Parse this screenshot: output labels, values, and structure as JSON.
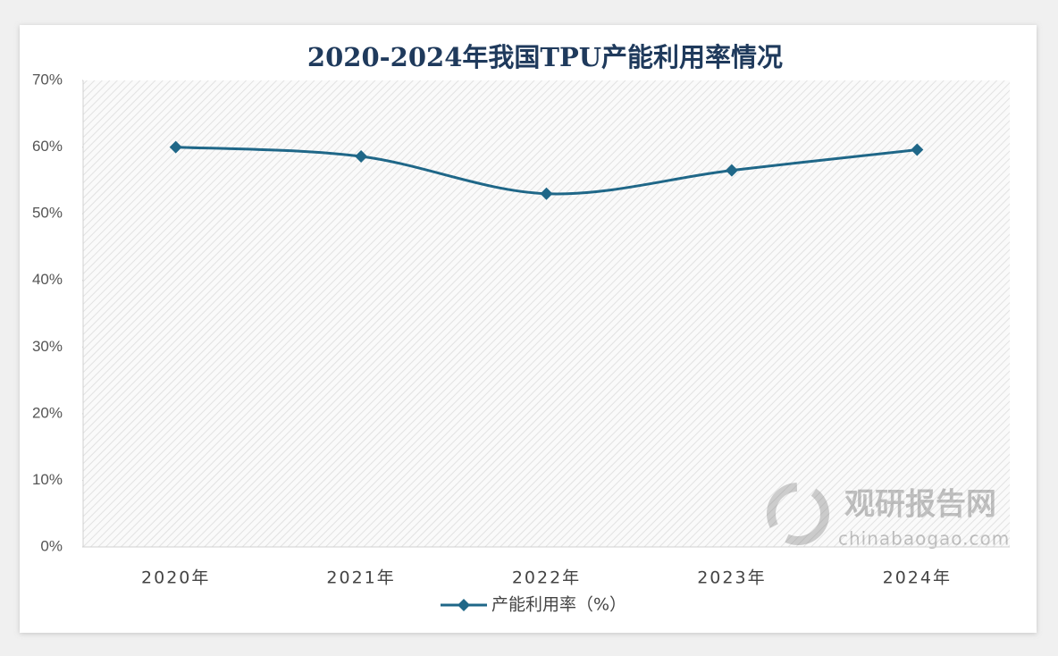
{
  "chart_data": {
    "type": "line",
    "title": "2020-2024年我国TPU产能利用率情况",
    "categories": [
      "2020年",
      "2021年",
      "2022年",
      "2023年",
      "2024年"
    ],
    "series": [
      {
        "name": "产能利用率（%）",
        "color": "#1f6788",
        "values": [
          60,
          58.6,
          53,
          56.5,
          59.6
        ]
      }
    ],
    "ylim": [
      0,
      70
    ],
    "yticks": [
      {
        "value": 0,
        "label": "0%"
      },
      {
        "value": 10,
        "label": "10%"
      },
      {
        "value": 20,
        "label": "20%"
      },
      {
        "value": 30,
        "label": "30%"
      },
      {
        "value": 40,
        "label": "40%"
      },
      {
        "value": 50,
        "label": "50%"
      },
      {
        "value": 60,
        "label": "60%"
      },
      {
        "value": 70,
        "label": "70%"
      }
    ],
    "legend": "bottom",
    "watermark": {
      "name": "观研报告网",
      "site": "chinabaogao.com"
    }
  }
}
